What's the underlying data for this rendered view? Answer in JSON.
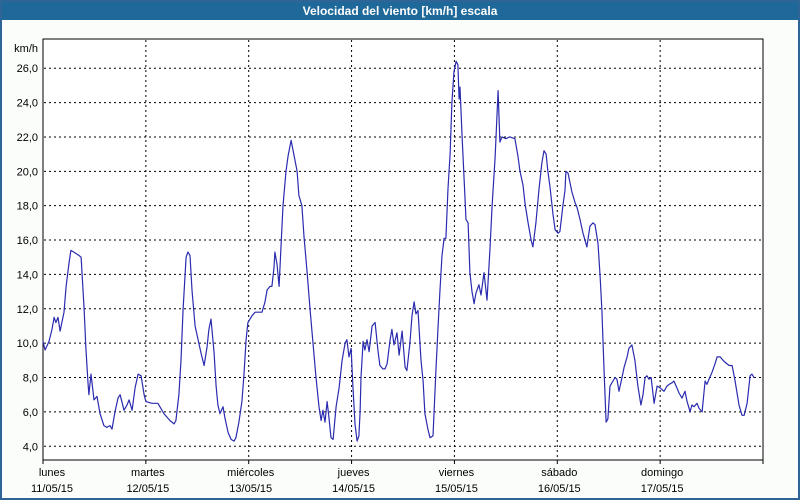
{
  "window": {
    "title": "Velocidad del viento [km/h] escala"
  },
  "colors": {
    "titlebar_bg": "#1e6999",
    "titlebar_text": "#ffffff",
    "window_border": "#2e6496",
    "page_bg": "#fbfdfb",
    "plot_bg": "#ffffff",
    "frame": "#000000",
    "grid": "#000000",
    "series_line": "#2b2bb0",
    "label_text": "#000000"
  },
  "chart_data": {
    "type": "line",
    "title": "Velocidad del viento [km/h] escala",
    "y_unit_label": "km/h",
    "ylabel": "km/h",
    "xlabel": "",
    "grid": "dashed",
    "legend_position": "none",
    "ylim": [
      3.2,
      27.7
    ],
    "x_range_hours": [
      0,
      168
    ],
    "y_ticks": {
      "values": [
        4,
        6,
        8,
        10,
        12,
        14,
        16,
        18,
        20,
        22,
        24,
        26
      ],
      "labels": [
        "4,0",
        "6,0",
        "8,0",
        "10,0",
        "12,0",
        "14,0",
        "16,0",
        "18,0",
        "20,0",
        "22,0",
        "24,0",
        "26,0"
      ]
    },
    "x_days": [
      {
        "day": "lunes",
        "date": "11/05/15"
      },
      {
        "day": "martes",
        "date": "12/05/15"
      },
      {
        "day": "miércoles",
        "date": "13/05/15"
      },
      {
        "day": "jueves",
        "date": "14/05/15"
      },
      {
        "day": "viernes",
        "date": "15/05/15"
      },
      {
        "day": "sábado",
        "date": "16/05/15"
      },
      {
        "day": "domingo",
        "date": "17/05/15"
      }
    ],
    "series": [
      {
        "name": "Velocidad del viento",
        "color": "#2b2bb0",
        "points": [
          [
            0,
            10.1
          ],
          [
            0.5,
            9.6
          ],
          [
            1.4,
            10.1
          ],
          [
            2.1,
            10.8
          ],
          [
            2.6,
            11.5
          ],
          [
            3,
            11.2
          ],
          [
            3.5,
            11.5
          ],
          [
            4,
            10.7
          ],
          [
            4.9,
            11.8
          ],
          [
            5.4,
            13.3
          ],
          [
            6.1,
            14.7
          ],
          [
            6.5,
            15.4
          ],
          [
            7.2,
            15.3
          ],
          [
            8.4,
            15.1
          ],
          [
            8.9,
            15
          ],
          [
            9.6,
            12
          ],
          [
            10,
            9.7
          ],
          [
            10.5,
            7.7
          ],
          [
            10.7,
            7
          ],
          [
            11.2,
            8.2
          ],
          [
            11.9,
            6.7
          ],
          [
            12.6,
            6.9
          ],
          [
            13.3,
            5.9
          ],
          [
            14.2,
            5.2
          ],
          [
            14.9,
            5.1
          ],
          [
            15.6,
            5.2
          ],
          [
            16.1,
            5
          ],
          [
            16.8,
            6
          ],
          [
            17.5,
            6.8
          ],
          [
            18,
            7
          ],
          [
            18.9,
            6.1
          ],
          [
            19.6,
            6.4
          ],
          [
            20.1,
            6.7
          ],
          [
            20.8,
            6.1
          ],
          [
            21.5,
            7.4
          ],
          [
            22.2,
            8.2
          ],
          [
            22.9,
            8.1
          ],
          [
            23.6,
            7
          ],
          [
            24,
            6.6
          ],
          [
            25.4,
            6.5
          ],
          [
            26.8,
            6.5
          ],
          [
            28.2,
            5.9
          ],
          [
            29.6,
            5.5
          ],
          [
            30.6,
            5.3
          ],
          [
            31,
            5.5
          ],
          [
            31.7,
            7
          ],
          [
            32.2,
            9
          ],
          [
            32.7,
            12
          ],
          [
            33.4,
            15
          ],
          [
            33.8,
            15.3
          ],
          [
            34.3,
            15.1
          ],
          [
            34.8,
            13
          ],
          [
            35.5,
            11
          ],
          [
            36.2,
            10.2
          ],
          [
            36.9,
            9.4
          ],
          [
            37.6,
            8.7
          ],
          [
            38.3,
            9.8
          ],
          [
            38.7,
            10.8
          ],
          [
            39.2,
            11.4
          ],
          [
            39.9,
            9.5
          ],
          [
            40.4,
            7.5
          ],
          [
            40.8,
            6.4
          ],
          [
            41.3,
            5.9
          ],
          [
            42,
            6.3
          ],
          [
            42.5,
            5.6
          ],
          [
            43.2,
            4.8
          ],
          [
            43.9,
            4.4
          ],
          [
            44.6,
            4.3
          ],
          [
            45,
            4.5
          ],
          [
            45.7,
            5.4
          ],
          [
            46.4,
            6.6
          ],
          [
            46.9,
            8.2
          ],
          [
            47.4,
            10.2
          ],
          [
            47.8,
            11.2
          ],
          [
            48.3,
            11.4
          ],
          [
            48.8,
            11.6
          ],
          [
            49.5,
            11.8
          ],
          [
            50.4,
            11.8
          ],
          [
            51.1,
            11.8
          ],
          [
            51.8,
            12.4
          ],
          [
            52.3,
            13.1
          ],
          [
            53,
            13.3
          ],
          [
            53.4,
            13.3
          ],
          [
            53.9,
            14.4
          ],
          [
            54.1,
            15.3
          ],
          [
            54.6,
            14.6
          ],
          [
            55.1,
            13.3
          ],
          [
            55.5,
            15.5
          ],
          [
            56,
            18
          ],
          [
            56.7,
            20
          ],
          [
            57.2,
            20.9
          ],
          [
            57.9,
            21.8
          ],
          [
            58.6,
            20.9
          ],
          [
            59.3,
            20
          ],
          [
            59.7,
            18.6
          ],
          [
            60.4,
            18
          ],
          [
            60.9,
            16.2
          ],
          [
            61.6,
            14.2
          ],
          [
            62.3,
            12
          ],
          [
            63,
            10
          ],
          [
            63.7,
            8
          ],
          [
            64.4,
            6.3
          ],
          [
            64.9,
            5.5
          ],
          [
            65.3,
            6.1
          ],
          [
            65.8,
            5.4
          ],
          [
            66.3,
            6.6
          ],
          [
            66.7,
            5.7
          ],
          [
            67.2,
            4.5
          ],
          [
            67.7,
            4.4
          ],
          [
            68.4,
            6.3
          ],
          [
            69.1,
            7.4
          ],
          [
            69.8,
            9
          ],
          [
            70.5,
            10
          ],
          [
            70.9,
            10.2
          ],
          [
            71.4,
            9.2
          ],
          [
            71.9,
            9.7
          ],
          [
            72.3,
            7.5
          ],
          [
            72.8,
            5.3
          ],
          [
            73.3,
            4.3
          ],
          [
            73.7,
            4.6
          ],
          [
            74,
            6
          ],
          [
            74.2,
            8
          ],
          [
            74.7,
            10.1
          ],
          [
            75.1,
            9.6
          ],
          [
            75.6,
            10.2
          ],
          [
            76.1,
            9.5
          ],
          [
            76.8,
            11
          ],
          [
            77.5,
            11.2
          ],
          [
            78.2,
            9.5
          ],
          [
            78.6,
            8.7
          ],
          [
            79.3,
            8.5
          ],
          [
            79.8,
            8.5
          ],
          [
            80.3,
            8.8
          ],
          [
            81,
            10.2
          ],
          [
            81.4,
            10.8
          ],
          [
            81.9,
            9.9
          ],
          [
            82.6,
            10.6
          ],
          [
            83.1,
            9.3
          ],
          [
            83.8,
            10.7
          ],
          [
            84.5,
            8.6
          ],
          [
            84.9,
            8.4
          ],
          [
            85.6,
            10
          ],
          [
            86.1,
            11.6
          ],
          [
            86.6,
            12.4
          ],
          [
            87,
            11.7
          ],
          [
            87.5,
            11.9
          ],
          [
            88.2,
            9
          ],
          [
            88.7,
            7.8
          ],
          [
            89.1,
            5.9
          ],
          [
            89.8,
            5
          ],
          [
            90.3,
            4.5
          ],
          [
            91,
            4.6
          ],
          [
            91.7,
            8.5
          ],
          [
            92.2,
            11
          ],
          [
            92.6,
            13
          ],
          [
            93.1,
            15.1
          ],
          [
            93.6,
            16.1
          ],
          [
            94,
            16.1
          ],
          [
            94.5,
            19
          ],
          [
            95,
            21
          ],
          [
            95.4,
            24
          ],
          [
            95.9,
            25.8
          ],
          [
            96.4,
            26.4
          ],
          [
            96.8,
            26.2
          ],
          [
            97.1,
            24.2
          ],
          [
            97.3,
            24.9
          ],
          [
            97.8,
            22
          ],
          [
            98.2,
            19.8
          ],
          [
            98.7,
            17.2
          ],
          [
            99.2,
            17
          ],
          [
            99.6,
            14.1
          ],
          [
            100.1,
            13
          ],
          [
            100.6,
            12.3
          ],
          [
            101,
            12.9
          ],
          [
            101.7,
            13.4
          ],
          [
            102.2,
            12.8
          ],
          [
            102.9,
            14.1
          ],
          [
            103.6,
            12.5
          ],
          [
            104.3,
            15.5
          ],
          [
            104.8,
            18
          ],
          [
            105.5,
            20.8
          ],
          [
            106.2,
            24.7
          ],
          [
            106.6,
            21.7
          ],
          [
            107.1,
            22
          ],
          [
            108,
            21.9
          ],
          [
            108.9,
            22
          ],
          [
            110.1,
            21.9
          ],
          [
            110.8,
            20.9
          ],
          [
            111.3,
            20
          ],
          [
            112,
            19.2
          ],
          [
            112.5,
            18.1
          ],
          [
            113.2,
            17
          ],
          [
            113.9,
            16
          ],
          [
            114.3,
            15.6
          ],
          [
            115,
            17
          ],
          [
            115.7,
            18.9
          ],
          [
            116.4,
            20.5
          ],
          [
            116.9,
            21.2
          ],
          [
            117.4,
            21
          ],
          [
            117.8,
            20
          ],
          [
            118.3,
            19.1
          ],
          [
            119,
            17.5
          ],
          [
            119.5,
            16.6
          ],
          [
            120.2,
            16.4
          ],
          [
            120.6,
            16.5
          ],
          [
            121.3,
            18
          ],
          [
            121.8,
            18.9
          ],
          [
            122,
            20
          ],
          [
            122.5,
            19.9
          ],
          [
            123.4,
            18.8
          ],
          [
            124.1,
            18.2
          ],
          [
            124.6,
            17.9
          ],
          [
            125.3,
            17.2
          ],
          [
            126,
            16.4
          ],
          [
            126.9,
            15.6
          ],
          [
            127.6,
            16.8
          ],
          [
            128.3,
            17
          ],
          [
            128.8,
            16.9
          ],
          [
            129.5,
            15.8
          ],
          [
            130,
            13.9
          ],
          [
            130.4,
            11.9
          ],
          [
            130.9,
            8.5
          ],
          [
            131.4,
            5.4
          ],
          [
            131.8,
            5.6
          ],
          [
            132.3,
            7.5
          ],
          [
            133,
            7.8
          ],
          [
            133.5,
            8
          ],
          [
            133.9,
            7.9
          ],
          [
            134.4,
            7.2
          ],
          [
            135.1,
            8
          ],
          [
            135.6,
            8.6
          ],
          [
            136.3,
            9.2
          ],
          [
            136.7,
            9.7
          ],
          [
            137.4,
            9.9
          ],
          [
            138.1,
            9
          ],
          [
            138.8,
            7.5
          ],
          [
            139.5,
            6.4
          ],
          [
            140,
            7
          ],
          [
            140.5,
            8
          ],
          [
            140.9,
            8.1
          ],
          [
            141.4,
            7.9
          ],
          [
            141.9,
            8
          ],
          [
            142.6,
            6.5
          ],
          [
            143.3,
            7.5
          ],
          [
            144,
            7.4
          ],
          [
            144.4,
            7.3
          ],
          [
            144.9,
            7.2
          ],
          [
            145.6,
            7.5
          ],
          [
            146.1,
            7.6
          ],
          [
            146.8,
            7.7
          ],
          [
            147.2,
            7.8
          ],
          [
            147.9,
            7.4
          ],
          [
            148.4,
            7.1
          ],
          [
            149.1,
            6.8
          ],
          [
            149.8,
            7.2
          ],
          [
            150.3,
            6.6
          ],
          [
            151,
            6
          ],
          [
            151.4,
            6.4
          ],
          [
            151.9,
            6.3
          ],
          [
            152.6,
            6.5
          ],
          [
            153.1,
            6.2
          ],
          [
            153.8,
            6
          ],
          [
            154.5,
            7.8
          ],
          [
            154.9,
            7.6
          ],
          [
            155.4,
            7.9
          ],
          [
            156.1,
            8.3
          ],
          [
            156.8,
            8.8
          ],
          [
            157.3,
            9.2
          ],
          [
            158,
            9.2
          ],
          [
            158.7,
            9
          ],
          [
            159.1,
            8.9
          ],
          [
            160.1,
            8.7
          ],
          [
            160.8,
            8.7
          ],
          [
            161.5,
            7.8
          ],
          [
            162.4,
            6.4
          ],
          [
            163.1,
            5.8
          ],
          [
            163.6,
            5.8
          ],
          [
            164.3,
            6.5
          ],
          [
            165,
            8.1
          ],
          [
            165.4,
            8.2
          ],
          [
            165.9,
            8
          ]
        ]
      }
    ]
  }
}
